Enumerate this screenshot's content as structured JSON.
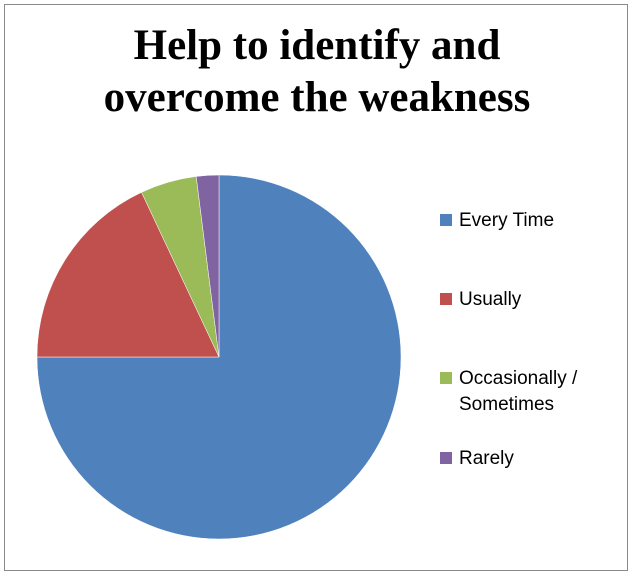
{
  "chart_data": {
    "type": "pie",
    "title": "Help to identify and overcome the weakness",
    "title_lines": [
      "Help to identify and",
      "overcome the weakness"
    ],
    "legend_position": "right",
    "start_angle_deg": 0,
    "direction": "clockwise",
    "slices": [
      {
        "label": "Every Time",
        "value": 75,
        "color": "#4f81bd"
      },
      {
        "label": "Usually",
        "value": 18,
        "color": "#c0504d"
      },
      {
        "label": "Occasionally / Sometimes",
        "legend_text": "Occasionally /\nSometimes",
        "value": 5,
        "color": "#9bbb59"
      },
      {
        "label": "Rarely",
        "value": 2,
        "color": "#8064a2"
      }
    ]
  }
}
